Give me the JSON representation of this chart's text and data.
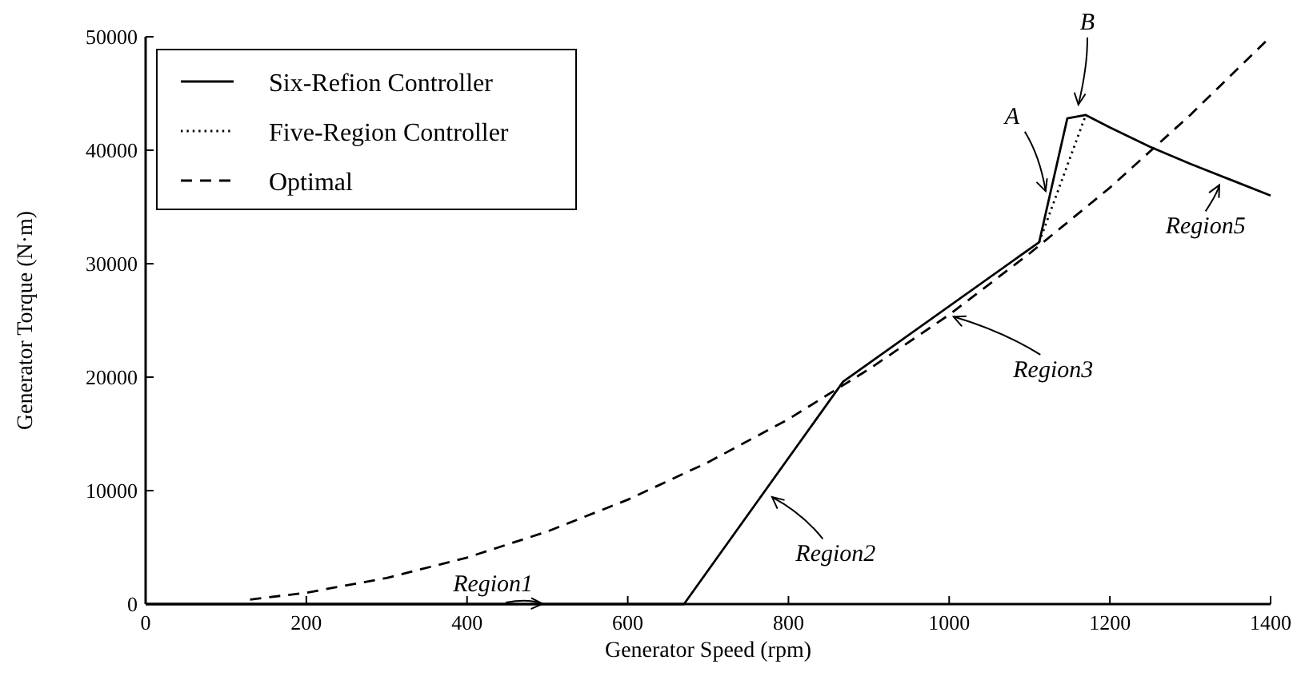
{
  "chart_data": {
    "type": "line",
    "xlabel": "Generator Speed (rpm)",
    "ylabel": "Generator Torque (N·m)",
    "xlim": [
      0,
      1400
    ],
    "xticks": [
      0,
      200,
      400,
      600,
      800,
      1000,
      1200,
      1400
    ],
    "ylim": [
      0,
      50000
    ],
    "yticks": [
      0,
      10000,
      20000,
      30000,
      40000,
      50000
    ],
    "grid": false,
    "legend": "top left",
    "series": [
      {
        "name": "Six-Refion Controller",
        "color": "#000000",
        "line_style": "solid",
        "x": [
          0,
          670,
          868,
          1112,
          1147,
          1170,
          1200,
          1250,
          1300,
          1350,
          1400
        ],
        "values": [
          0,
          0,
          19600,
          31900,
          42800,
          43100,
          42000,
          40300,
          38800,
          37400,
          36000
        ]
      },
      {
        "name": "Five-Region Controller",
        "color": "#000000",
        "line_style": "dotted",
        "x": [
          1112,
          1170
        ],
        "values": [
          31900,
          43100
        ]
      },
      {
        "name": "Optimal",
        "color": "#000000",
        "line_style": "dashed",
        "x": [
          130,
          200,
          300,
          400,
          500,
          600,
          700,
          800,
          900,
          1000,
          1100,
          1200,
          1300,
          1400
        ],
        "values": [
          400,
          1000,
          2300,
          4100,
          6400,
          9200,
          12500,
          16300,
          20700,
          25500,
          30900,
          36700,
          43100,
          50000
        ]
      }
    ],
    "annotations": [
      {
        "text": "Region1",
        "x": 500,
        "y": 0
      },
      {
        "text": "Region2",
        "x": 775,
        "y": 9700
      },
      {
        "text": "Region3",
        "x": 1000,
        "y": 25500
      },
      {
        "text": "A",
        "x": 1122,
        "y": 36000
      },
      {
        "text": "B",
        "x": 1160,
        "y": 43600
      },
      {
        "text": "Region5",
        "x": 1339,
        "y": 37300
      }
    ]
  }
}
